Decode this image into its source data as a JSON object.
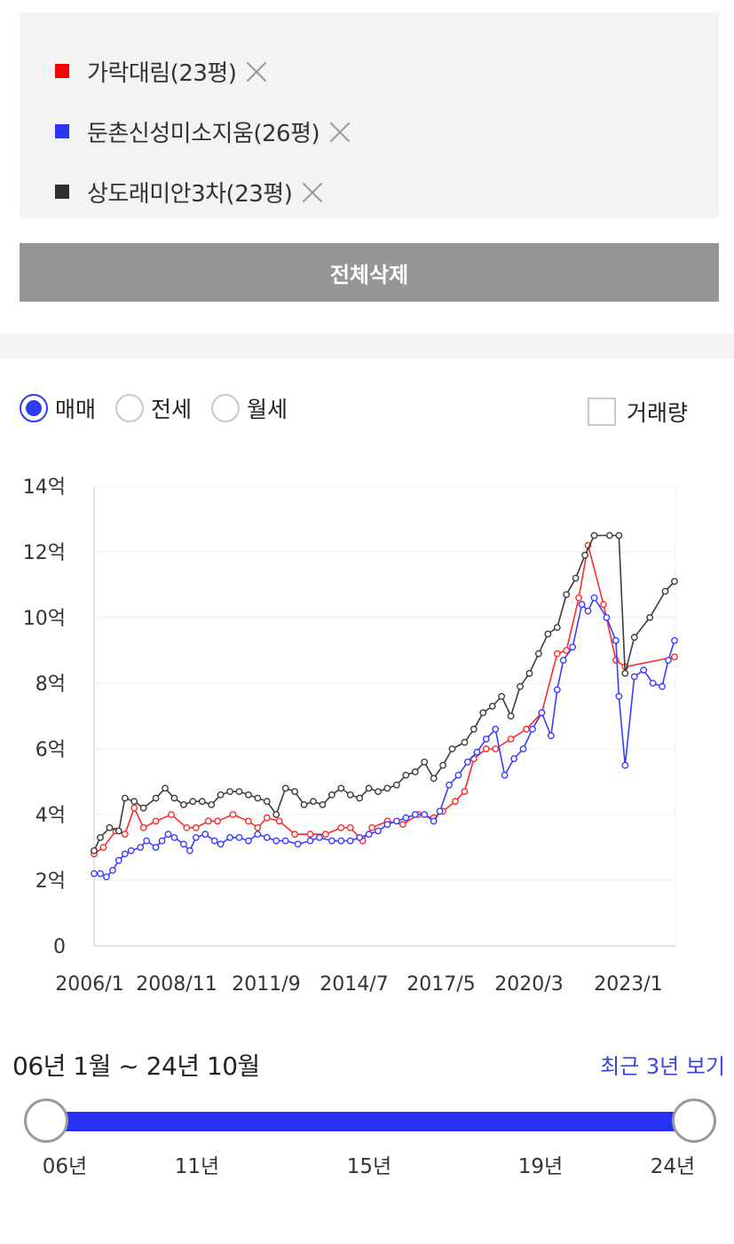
{
  "compare": {
    "items": [
      {
        "label": "가락대림(23평)",
        "color": "#ff0000"
      },
      {
        "label": "둔촌신성미소지움(26평)",
        "color": "#2b35f5"
      },
      {
        "label": "상도래미안3차(23평)",
        "color": "#2f2f2f"
      }
    ],
    "delete_all_label": "전체삭제"
  },
  "filters": {
    "radios": [
      {
        "label": "매매",
        "checked": true
      },
      {
        "label": "전세",
        "checked": false
      },
      {
        "label": "월세",
        "checked": false
      }
    ],
    "volume_checkbox": {
      "label": "거래량",
      "checked": false
    }
  },
  "chart_data": {
    "type": "line",
    "x_tick_labels": [
      "2006/1",
      "2008/11",
      "2011/9",
      "2014/7",
      "2017/5",
      "2020/3",
      "2023/1"
    ],
    "y_tick_labels": [
      "0",
      "2억",
      "4억",
      "6억",
      "8억",
      "10억",
      "12억",
      "14억"
    ],
    "ylim": [
      0,
      14
    ],
    "y_unit": "억",
    "xlim": [
      2006.0,
      2024.83
    ],
    "grid": true,
    "series": [
      {
        "name": "가락대림(23평)",
        "color": "#ff2a2a",
        "x": [
          2006.0,
          2006.3,
          2006.7,
          2007.0,
          2007.3,
          2007.6,
          2008.0,
          2008.5,
          2009.0,
          2009.3,
          2009.7,
          2010.0,
          2010.5,
          2011.0,
          2011.3,
          2011.6,
          2012.0,
          2012.5,
          2013.0,
          2013.5,
          2014.0,
          2014.3,
          2014.7,
          2015.0,
          2015.5,
          2016.0,
          2016.5,
          2017.0,
          2017.3,
          2017.7,
          2018.0,
          2018.3,
          2018.7,
          2019.0,
          2019.5,
          2020.0,
          2020.5,
          2021.0,
          2021.3,
          2021.7,
          2022.0,
          2022.5,
          2022.9,
          2023.2,
          2024.8
        ],
        "values": [
          2.8,
          3.0,
          3.5,
          3.4,
          4.2,
          3.6,
          3.8,
          4.0,
          3.6,
          3.6,
          3.8,
          3.8,
          4.0,
          3.8,
          3.6,
          3.9,
          3.8,
          3.4,
          3.4,
          3.4,
          3.6,
          3.6,
          3.2,
          3.6,
          3.8,
          3.7,
          4.0,
          3.9,
          4.1,
          4.4,
          4.7,
          5.7,
          6.0,
          6.0,
          6.3,
          6.6,
          7.1,
          8.9,
          9.0,
          10.6,
          12.2,
          10.4,
          8.7,
          8.5,
          8.8
        ]
      },
      {
        "name": "둔촌신성미소지움(26평)",
        "color": "#3a3dff",
        "x": [
          2006.0,
          2006.2,
          2006.4,
          2006.6,
          2006.8,
          2007.0,
          2007.2,
          2007.5,
          2007.7,
          2008.0,
          2008.2,
          2008.4,
          2008.6,
          2008.9,
          2009.1,
          2009.3,
          2009.6,
          2009.9,
          2010.1,
          2010.4,
          2010.7,
          2011.0,
          2011.3,
          2011.6,
          2011.9,
          2012.2,
          2012.6,
          2013.0,
          2013.3,
          2013.7,
          2014.0,
          2014.3,
          2014.6,
          2014.9,
          2015.2,
          2015.5,
          2015.8,
          2016.1,
          2016.4,
          2016.7,
          2017.0,
          2017.2,
          2017.5,
          2017.8,
          2018.1,
          2018.4,
          2018.7,
          2019.0,
          2019.3,
          2019.6,
          2019.9,
          2020.2,
          2020.5,
          2020.8,
          2021.0,
          2021.2,
          2021.5,
          2021.8,
          2022.0,
          2022.2,
          2022.6,
          2022.9,
          2023.0,
          2023.2,
          2023.5,
          2023.8,
          2024.1,
          2024.4,
          2024.6,
          2024.8
        ],
        "values": [
          2.2,
          2.2,
          2.1,
          2.3,
          2.6,
          2.8,
          2.9,
          3.0,
          3.2,
          3.0,
          3.2,
          3.4,
          3.3,
          3.1,
          2.9,
          3.3,
          3.4,
          3.2,
          3.1,
          3.3,
          3.3,
          3.2,
          3.4,
          3.3,
          3.2,
          3.2,
          3.1,
          3.2,
          3.3,
          3.2,
          3.2,
          3.2,
          3.3,
          3.4,
          3.5,
          3.7,
          3.8,
          3.9,
          4.0,
          4.0,
          3.8,
          4.1,
          4.9,
          5.2,
          5.6,
          5.9,
          6.3,
          6.6,
          5.2,
          5.7,
          6.0,
          6.6,
          7.1,
          6.4,
          7.8,
          8.7,
          9.1,
          10.4,
          10.2,
          10.6,
          10.0,
          9.3,
          7.6,
          5.5,
          8.2,
          8.4,
          8.0,
          7.9,
          8.7,
          9.3
        ]
      },
      {
        "name": "상도래미안3차(23평)",
        "color": "#3c3c3c",
        "x": [
          2006.0,
          2006.2,
          2006.5,
          2006.8,
          2007.0,
          2007.3,
          2007.6,
          2008.0,
          2008.3,
          2008.6,
          2008.9,
          2009.2,
          2009.5,
          2009.8,
          2010.1,
          2010.4,
          2010.7,
          2011.0,
          2011.3,
          2011.6,
          2011.9,
          2012.2,
          2012.5,
          2012.8,
          2013.1,
          2013.4,
          2013.7,
          2014.0,
          2014.3,
          2014.6,
          2014.9,
          2015.2,
          2015.5,
          2015.8,
          2016.1,
          2016.4,
          2016.7,
          2017.0,
          2017.3,
          2017.6,
          2018.0,
          2018.3,
          2018.6,
          2018.9,
          2019.2,
          2019.5,
          2019.8,
          2020.1,
          2020.4,
          2020.7,
          2021.0,
          2021.3,
          2021.6,
          2021.9,
          2022.2,
          2022.7,
          2023.0,
          2023.2,
          2023.5,
          2024.0,
          2024.5,
          2024.8
        ],
        "values": [
          2.9,
          3.3,
          3.6,
          3.5,
          4.5,
          4.4,
          4.2,
          4.5,
          4.8,
          4.5,
          4.3,
          4.4,
          4.4,
          4.3,
          4.6,
          4.7,
          4.7,
          4.6,
          4.5,
          4.4,
          4.0,
          4.8,
          4.7,
          4.3,
          4.4,
          4.3,
          4.6,
          4.8,
          4.6,
          4.5,
          4.8,
          4.7,
          4.8,
          4.9,
          5.2,
          5.3,
          5.6,
          5.1,
          5.5,
          6.0,
          6.2,
          6.6,
          7.1,
          7.3,
          7.6,
          7.0,
          7.9,
          8.3,
          8.9,
          9.5,
          9.7,
          10.7,
          11.2,
          11.9,
          12.5,
          12.5,
          12.5,
          8.3,
          9.4,
          10.0,
          10.8,
          11.1
        ]
      }
    ]
  },
  "range": {
    "text": "06년 1월 ~ 24년 10월",
    "recent_link": "최근 3년 보기",
    "ticks": [
      "06년",
      "11년",
      "15년",
      "19년",
      "24년"
    ],
    "start_year": 2006.0,
    "end_year": 2024.83
  }
}
